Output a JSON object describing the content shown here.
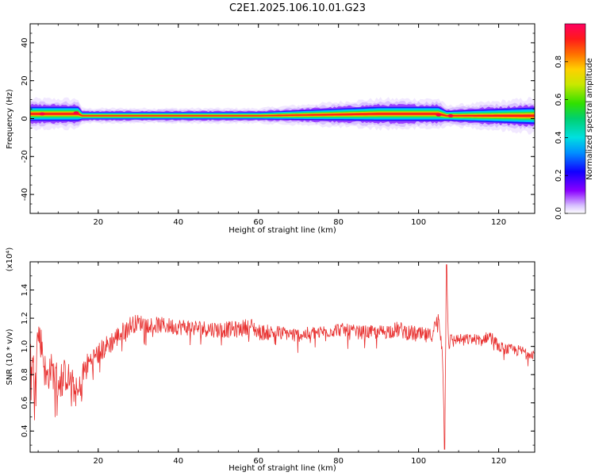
{
  "title": "C2E1.2025.106.10.01.G23",
  "chart_data": [
    {
      "type": "heatmap",
      "xlabel": "Height of straight line (km)",
      "ylabel": "Frequency (Hz)",
      "xlim": [
        3,
        129
      ],
      "ylim": [
        -50,
        50
      ],
      "x_ticks": [
        "20",
        "40",
        "60",
        "80",
        "100",
        "120"
      ],
      "x_tick_values": [
        20,
        40,
        60,
        80,
        100,
        120
      ],
      "y_ticks": [
        "40",
        "20",
        "0",
        "-20",
        "-40"
      ],
      "y_tick_values": [
        40,
        20,
        0,
        -20,
        -40
      ],
      "colorbar": {
        "label": "Normalized spectral amplitude",
        "range": [
          0,
          1
        ],
        "ticks": [
          "0.0",
          "0.2",
          "0.4",
          "0.6",
          "0.8"
        ],
        "tick_values": [
          0.0,
          0.2,
          0.4,
          0.6,
          0.8
        ]
      },
      "ridge": {
        "description": "energy concentrated near 0-4 Hz along entire height range",
        "x": [
          4,
          15,
          16,
          60,
          90,
          105,
          107,
          129
        ],
        "center_hz": [
          2.5,
          2.5,
          1.5,
          1.5,
          2.5,
          2.5,
          1.5,
          1.5
        ],
        "halfwidth_hz": [
          3,
          3,
          1.5,
          1.5,
          3,
          3,
          2,
          3.5
        ]
      },
      "grid": false
    },
    {
      "type": "line",
      "xlabel": "Height of straight line (km)",
      "ylabel": "SNR (10 * v/v)",
      "scale_label": "(x10⁴)",
      "xlim": [
        3,
        129
      ],
      "ylim": [
        0.25,
        1.6
      ],
      "x_ticks": [
        "20",
        "40",
        "60",
        "80",
        "100",
        "120"
      ],
      "x_tick_values": [
        20,
        40,
        60,
        80,
        100,
        120
      ],
      "y_ticks": [
        "0.4",
        "0.6",
        "0.8",
        "1.0",
        "1.2",
        "1.4"
      ],
      "y_tick_values": [
        0.4,
        0.6,
        0.8,
        1.0,
        1.2,
        1.4
      ],
      "series": [
        {
          "color": "#e8302f",
          "x": [
            3,
            4,
            5,
            6,
            7,
            8,
            9,
            10,
            12,
            14,
            15,
            16,
            17,
            18,
            20,
            22,
            24,
            26,
            28,
            30,
            32,
            35,
            40,
            45,
            50,
            55,
            58,
            60,
            65,
            70,
            75,
            80,
            85,
            90,
            95,
            100,
            103,
            105,
            106,
            106.5,
            107,
            107.5,
            108,
            110,
            113,
            116,
            118,
            120,
            122,
            125,
            129
          ],
          "y": [
            0.95,
            0.8,
            1.1,
            1.0,
            0.75,
            0.85,
            0.8,
            0.75,
            0.8,
            0.7,
            0.65,
            0.8,
            0.85,
            0.9,
            0.95,
            1.0,
            1.05,
            1.1,
            1.15,
            1.17,
            1.16,
            1.15,
            1.14,
            1.13,
            1.12,
            1.12,
            1.15,
            1.1,
            1.1,
            1.08,
            1.1,
            1.12,
            1.1,
            1.1,
            1.12,
            1.08,
            1.07,
            1.2,
            0.95,
            0.3,
            1.55,
            1.0,
            1.05,
            1.05,
            1.05,
            1.05,
            1.08,
            1.0,
            0.98,
            0.97,
            0.95
          ],
          "noise": [
            0.12,
            0.15,
            0.12,
            0.12,
            0.15,
            0.12,
            0.12,
            0.15,
            0.12,
            0.12,
            0.1,
            0.1,
            0.1,
            0.08,
            0.08,
            0.08,
            0.08,
            0.07,
            0.07,
            0.06,
            0.06,
            0.06,
            0.06,
            0.06,
            0.06,
            0.06,
            0.06,
            0.06,
            0.05,
            0.05,
            0.05,
            0.05,
            0.05,
            0.05,
            0.06,
            0.06,
            0.06,
            0.05,
            0.05,
            0.0,
            0.0,
            0.05,
            0.04,
            0.04,
            0.04,
            0.04,
            0.04,
            0.04,
            0.04,
            0.04,
            0.04
          ]
        }
      ],
      "grid": false
    }
  ]
}
